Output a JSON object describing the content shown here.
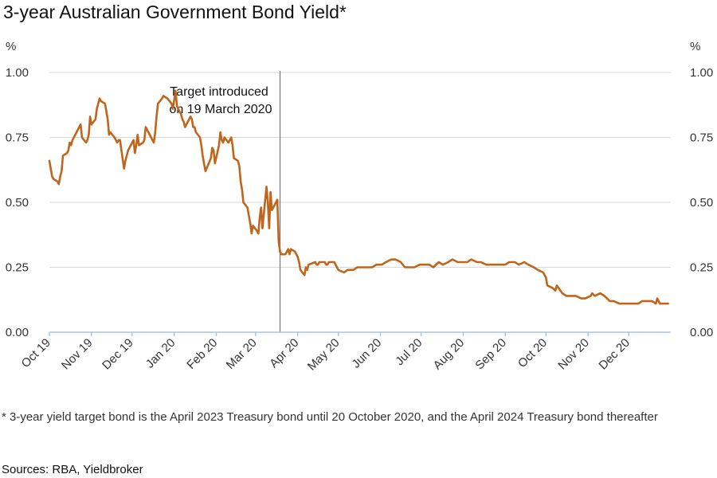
{
  "chart_data": {
    "type": "line",
    "title": "3-year Australian Government Bond Yield*",
    "y_unit_left": "%",
    "y_unit_right": "%",
    "ylim": [
      0,
      1
    ],
    "yticks": [
      "0.00",
      "0.25",
      "0.50",
      "0.75",
      "1.00"
    ],
    "ytick_values": [
      0,
      0.25,
      0.5,
      0.75,
      1.0
    ],
    "xlim": [
      "2019-10-01",
      "2021-01-01"
    ],
    "xticks": [
      {
        "label": "Oct 19",
        "date": "2019-10-01"
      },
      {
        "label": "Nov 19",
        "date": "2019-11-01"
      },
      {
        "label": "Dec 19",
        "date": "2019-12-01"
      },
      {
        "label": "Jan 20",
        "date": "2020-01-01"
      },
      {
        "label": "Feb 20",
        "date": "2020-02-01"
      },
      {
        "label": "Mar 20",
        "date": "2020-03-01"
      },
      {
        "label": "Apr 20",
        "date": "2020-04-01"
      },
      {
        "label": "May 20",
        "date": "2020-05-01"
      },
      {
        "label": "Jun 20",
        "date": "2020-06-01"
      },
      {
        "label": "Jul 20",
        "date": "2020-07-01"
      },
      {
        "label": "Aug 20",
        "date": "2020-08-01"
      },
      {
        "label": "Sep 20",
        "date": "2020-09-01"
      },
      {
        "label": "Oct 20",
        "date": "2020-10-01"
      },
      {
        "label": "Nov 20",
        "date": "2020-11-01"
      },
      {
        "label": "Dec 20",
        "date": "2020-12-01"
      }
    ],
    "grid": true,
    "legend": "none",
    "line_color": "#c0651c",
    "grid_color": "#d9d9d9",
    "axis_color": "#a9c4e0",
    "annotation": {
      "date": "2020-03-19",
      "line1": "Target introduced",
      "line2": "on 19 March 2020"
    },
    "series": [
      {
        "x": [
          "2019-10-01",
          "2019-10-02",
          "2019-10-03",
          "2019-10-04",
          "2019-10-07",
          "2019-10-08",
          "2019-10-09",
          "2019-10-10",
          "2019-10-11",
          "2019-10-14",
          "2019-10-15",
          "2019-10-16",
          "2019-10-17",
          "2019-10-18",
          "2019-10-21",
          "2019-10-22",
          "2019-10-23",
          "2019-10-24",
          "2019-10-25",
          "2019-10-28",
          "2019-10-29",
          "2019-10-30",
          "2019-10-31",
          "2019-11-01",
          "2019-11-04",
          "2019-11-05",
          "2019-11-06",
          "2019-11-07",
          "2019-11-08",
          "2019-11-11",
          "2019-11-12",
          "2019-11-13",
          "2019-11-14",
          "2019-11-15",
          "2019-11-18",
          "2019-11-19",
          "2019-11-20",
          "2019-11-21",
          "2019-11-22",
          "2019-11-25",
          "2019-11-26",
          "2019-11-27",
          "2019-11-28",
          "2019-11-29",
          "2019-12-02",
          "2019-12-03",
          "2019-12-04",
          "2019-12-05",
          "2019-12-06",
          "2019-12-09",
          "2019-12-10",
          "2019-12-11",
          "2019-12-12",
          "2019-12-13",
          "2019-12-16",
          "2019-12-17",
          "2019-12-18",
          "2019-12-19",
          "2019-12-20",
          "2019-12-23",
          "2019-12-24",
          "2019-12-27",
          "2019-12-30",
          "2019-12-31",
          "2020-01-02",
          "2020-01-03",
          "2020-01-06",
          "2020-01-07",
          "2020-01-08",
          "2020-01-09",
          "2020-01-10",
          "2020-01-13",
          "2020-01-14",
          "2020-01-15",
          "2020-01-16",
          "2020-01-17",
          "2020-01-20",
          "2020-01-21",
          "2020-01-22",
          "2020-01-23",
          "2020-01-24",
          "2020-01-28",
          "2020-01-29",
          "2020-01-30",
          "2020-01-31",
          "2020-02-03",
          "2020-02-04",
          "2020-02-05",
          "2020-02-06",
          "2020-02-07",
          "2020-02-10",
          "2020-02-11",
          "2020-02-12",
          "2020-02-13",
          "2020-02-14",
          "2020-02-17",
          "2020-02-18",
          "2020-02-19",
          "2020-02-20",
          "2020-02-21",
          "2020-02-24",
          "2020-02-25",
          "2020-02-26",
          "2020-02-27",
          "2020-02-28",
          "2020-03-02",
          "2020-03-03",
          "2020-03-04",
          "2020-03-05",
          "2020-03-06",
          "2020-03-09",
          "2020-03-10",
          "2020-03-11",
          "2020-03-12",
          "2020-03-13",
          "2020-03-16",
          "2020-03-17",
          "2020-03-18",
          "2020-03-19",
          "2020-03-20",
          "2020-03-23",
          "2020-03-24",
          "2020-03-25",
          "2020-03-26",
          "2020-03-27",
          "2020-03-30",
          "2020-03-31",
          "2020-04-01",
          "2020-04-02",
          "2020-04-03",
          "2020-04-06",
          "2020-04-07",
          "2020-04-08",
          "2020-04-09",
          "2020-04-14",
          "2020-04-15",
          "2020-04-16",
          "2020-04-17",
          "2020-04-20",
          "2020-04-21",
          "2020-04-22",
          "2020-04-23",
          "2020-04-24",
          "2020-04-28",
          "2020-04-29",
          "2020-04-30",
          "2020-05-01",
          "2020-05-05",
          "2020-05-08",
          "2020-05-12",
          "2020-05-15",
          "2020-05-19",
          "2020-05-22",
          "2020-05-26",
          "2020-05-29",
          "2020-06-02",
          "2020-06-05",
          "2020-06-09",
          "2020-06-12",
          "2020-06-16",
          "2020-06-19",
          "2020-06-23",
          "2020-06-26",
          "2020-06-30",
          "2020-07-03",
          "2020-07-07",
          "2020-07-10",
          "2020-07-14",
          "2020-07-17",
          "2020-07-21",
          "2020-07-24",
          "2020-07-28",
          "2020-07-31",
          "2020-08-04",
          "2020-08-07",
          "2020-08-11",
          "2020-08-14",
          "2020-08-18",
          "2020-08-21",
          "2020-08-25",
          "2020-08-28",
          "2020-09-01",
          "2020-09-04",
          "2020-09-08",
          "2020-09-11",
          "2020-09-15",
          "2020-09-18",
          "2020-09-22",
          "2020-09-25",
          "2020-09-29",
          "2020-10-01",
          "2020-10-02",
          "2020-10-06",
          "2020-10-08",
          "2020-10-09",
          "2020-10-13",
          "2020-10-16",
          "2020-10-20",
          "2020-10-21",
          "2020-10-23",
          "2020-10-27",
          "2020-10-30",
          "2020-11-03",
          "2020-11-04",
          "2020-11-06",
          "2020-11-10",
          "2020-11-13",
          "2020-11-17",
          "2020-11-20",
          "2020-11-24",
          "2020-11-27",
          "2020-12-01",
          "2020-12-04",
          "2020-12-08",
          "2020-12-11",
          "2020-12-15",
          "2020-12-18",
          "2020-12-21",
          "2020-12-22",
          "2020-12-24",
          "2020-12-28",
          "2020-12-30"
        ],
        "y": [
          0.66,
          0.63,
          0.6,
          0.59,
          0.58,
          0.57,
          0.6,
          0.62,
          0.68,
          0.69,
          0.7,
          0.73,
          0.72,
          0.74,
          0.77,
          0.78,
          0.79,
          0.8,
          0.75,
          0.73,
          0.74,
          0.76,
          0.83,
          0.8,
          0.82,
          0.86,
          0.88,
          0.9,
          0.89,
          0.88,
          0.85,
          0.82,
          0.76,
          0.77,
          0.75,
          0.74,
          0.73,
          0.74,
          0.74,
          0.63,
          0.66,
          0.68,
          0.7,
          0.71,
          0.74,
          0.69,
          0.72,
          0.76,
          0.72,
          0.73,
          0.74,
          0.79,
          0.78,
          0.77,
          0.74,
          0.73,
          0.77,
          0.83,
          0.88,
          0.9,
          0.91,
          0.9,
          0.88,
          0.86,
          0.93,
          0.87,
          0.84,
          0.82,
          0.81,
          0.79,
          0.8,
          0.83,
          0.82,
          0.79,
          0.79,
          0.77,
          0.75,
          0.72,
          0.68,
          0.65,
          0.62,
          0.67,
          0.71,
          0.7,
          0.65,
          0.72,
          0.77,
          0.74,
          0.73,
          0.75,
          0.73,
          0.74,
          0.75,
          0.72,
          0.67,
          0.66,
          0.64,
          0.58,
          0.55,
          0.5,
          0.48,
          0.45,
          0.42,
          0.38,
          0.41,
          0.39,
          0.38,
          0.44,
          0.48,
          0.4,
          0.56,
          0.5,
          0.4,
          0.54,
          0.47,
          0.5,
          0.51,
          0.35,
          0.31,
          0.3,
          0.3,
          0.31,
          0.32,
          0.3,
          0.32,
          0.31,
          0.3,
          0.29,
          0.27,
          0.24,
          0.22,
          0.25,
          0.24,
          0.26,
          0.27,
          0.26,
          0.26,
          0.27,
          0.27,
          0.27,
          0.26,
          0.26,
          0.27,
          0.27,
          0.26,
          0.25,
          0.24,
          0.23,
          0.24,
          0.24,
          0.25,
          0.25,
          0.25,
          0.25,
          0.26,
          0.26,
          0.27,
          0.28,
          0.28,
          0.27,
          0.25,
          0.25,
          0.25,
          0.26,
          0.26,
          0.26,
          0.25,
          0.27,
          0.26,
          0.27,
          0.28,
          0.27,
          0.27,
          0.27,
          0.28,
          0.27,
          0.27,
          0.26,
          0.26,
          0.26,
          0.26,
          0.26,
          0.27,
          0.27,
          0.26,
          0.27,
          0.26,
          0.25,
          0.24,
          0.23,
          0.21,
          0.18,
          0.17,
          0.16,
          0.18,
          0.15,
          0.14,
          0.14,
          0.14,
          0.14,
          0.13,
          0.13,
          0.14,
          0.15,
          0.14,
          0.15,
          0.14,
          0.12,
          0.12,
          0.11,
          0.11,
          0.11,
          0.11,
          0.11,
          0.12,
          0.12,
          0.12,
          0.11,
          0.13,
          0.11,
          0.11,
          0.11
        ]
      }
    ]
  },
  "footnote": "* 3-year yield target bond is the April 2023 Treasury bond until 20 October 2020, and the April 2024 Treasury bond thereafter",
  "sources": "Sources: RBA, Yieldbroker"
}
